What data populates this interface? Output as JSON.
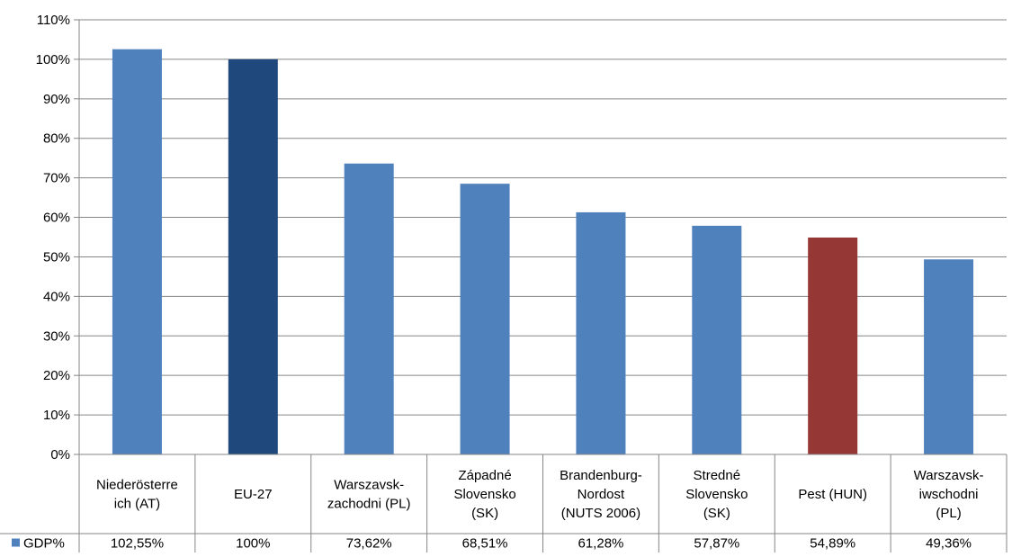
{
  "chart_data": {
    "type": "bar",
    "categories": [
      [
        "Niederösterre",
        "ich (AT)"
      ],
      [
        "EU-27"
      ],
      [
        "Warszavsk-",
        "zachodni (PL)"
      ],
      [
        "Západné",
        "Slovensko",
        "(SK)"
      ],
      [
        "Brandenburg-",
        "Nordost",
        "(NUTS 2006)"
      ],
      [
        "Stredné",
        "Slovensko",
        "(SK)"
      ],
      [
        "Pest (HUN)"
      ],
      [
        "Warszavsk-",
        "iwschodni",
        "(PL)"
      ]
    ],
    "series": [
      {
        "name": "GDP%",
        "values": [
          102.55,
          100,
          73.62,
          68.51,
          61.28,
          57.87,
          54.89,
          49.36
        ],
        "labels": [
          "102,55%",
          "100%",
          "73,62%",
          "68,51%",
          "61,28%",
          "57,87%",
          "54,89%",
          "49,36%"
        ]
      }
    ],
    "bar_colors": [
      "#4f81bd",
      "#1f497d",
      "#4f81bd",
      "#4f81bd",
      "#4f81bd",
      "#4f81bd",
      "#953735",
      "#4f81bd"
    ],
    "legend_color": "#4f81bd",
    "ylim": [
      0,
      110
    ],
    "yticks": [
      0,
      10,
      20,
      30,
      40,
      50,
      60,
      70,
      80,
      90,
      100,
      110
    ],
    "ytick_labels": [
      "0%",
      "10%",
      "20%",
      "30%",
      "40%",
      "50%",
      "60%",
      "70%",
      "80%",
      "90%",
      "100%",
      "110%"
    ],
    "grid": true,
    "legend_position": "data-table-left",
    "title": "",
    "xlabel": "",
    "ylabel": ""
  }
}
